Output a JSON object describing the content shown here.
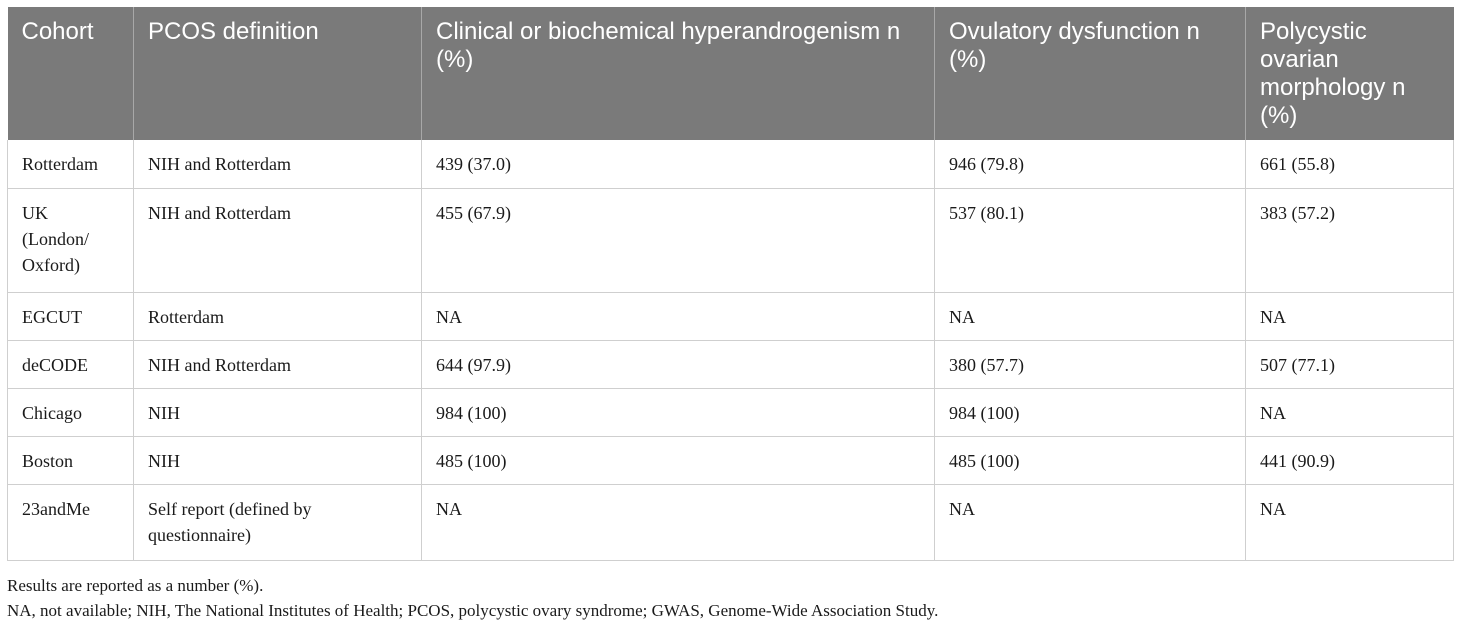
{
  "table": {
    "headers": [
      "Cohort",
      "PCOS definition",
      "Clinical or biochemical hyperandrogenism n (%)",
      "Ovulatory dysfunction n (%)",
      "Polycystic ovarian morphology n (%)"
    ],
    "rows": [
      [
        "Rotterdam",
        "NIH and Rotterdam",
        "439 (37.0)",
        "946 (79.8)",
        "661 (55.8)"
      ],
      [
        "UK (London/ Oxford)",
        "NIH and Rotterdam",
        "455 (67.9)",
        "537 (80.1)",
        "383 (57.2)"
      ],
      [
        "EGCUT",
        "Rotterdam",
        "NA",
        "NA",
        "NA"
      ],
      [
        "deCODE",
        "NIH and Rotterdam",
        "644 (97.9)",
        "380 (57.7)",
        "507 (77.1)"
      ],
      [
        "Chicago",
        "NIH",
        "984 (100)",
        "984 (100)",
        "NA"
      ],
      [
        "Boston",
        "NIH",
        "485 (100)",
        "485 (100)",
        "441 (90.9)"
      ],
      [
        "23andMe",
        "Self report (defined by questionnaire)",
        "NA",
        "NA",
        "NA"
      ]
    ]
  },
  "notes": [
    "Results are reported as a number (%).",
    "NA, not available; NIH, The National Institutes of Health; PCOS, polycystic ovary syndrome; GWAS, Genome-Wide Association Study."
  ]
}
